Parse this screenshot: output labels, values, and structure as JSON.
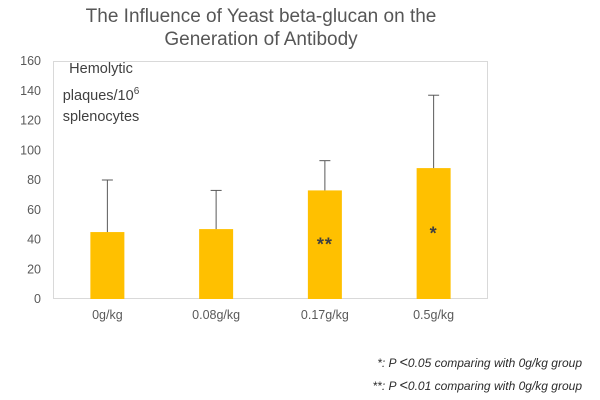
{
  "title": {
    "line1": "The Influence of Yeast beta-glucan on the",
    "line2": "Generation of Antibody"
  },
  "y_axis_label": {
    "line1": "Hemolytic",
    "line2_base": "plaques/10",
    "line2_sup": "6",
    "line3": "splenocytes"
  },
  "footnotes": {
    "line1": {
      "pre": "*: P ",
      "lt": "<",
      "post": "0.05 comparing with 0g/kg group"
    },
    "line2": {
      "pre": "**: P ",
      "lt": "<",
      "post": "0.01 comparing with 0g/kg group"
    }
  },
  "chart_data": {
    "type": "bar",
    "title": "The Influence of Yeast beta-glucan on the Generation of Antibody",
    "categories": [
      "0g/kg",
      "0.08g/kg",
      "0.17g/kg",
      "0.5g/kg"
    ],
    "values": [
      45,
      47,
      73,
      88
    ],
    "error_upper": [
      80,
      73,
      93,
      137
    ],
    "annotations": [
      "",
      "",
      "**",
      "*"
    ],
    "ylabel": "Hemolytic plaques/10⁶ splenocytes",
    "ylim": [
      0,
      160
    ],
    "ytick_step": 20,
    "grid": false,
    "legend": false,
    "bar_color": "#FFC000",
    "error_color": "#595959",
    "axis_color": "#D9D9D9",
    "tick_label_color": "#595959",
    "annotation_color": "#404040"
  }
}
